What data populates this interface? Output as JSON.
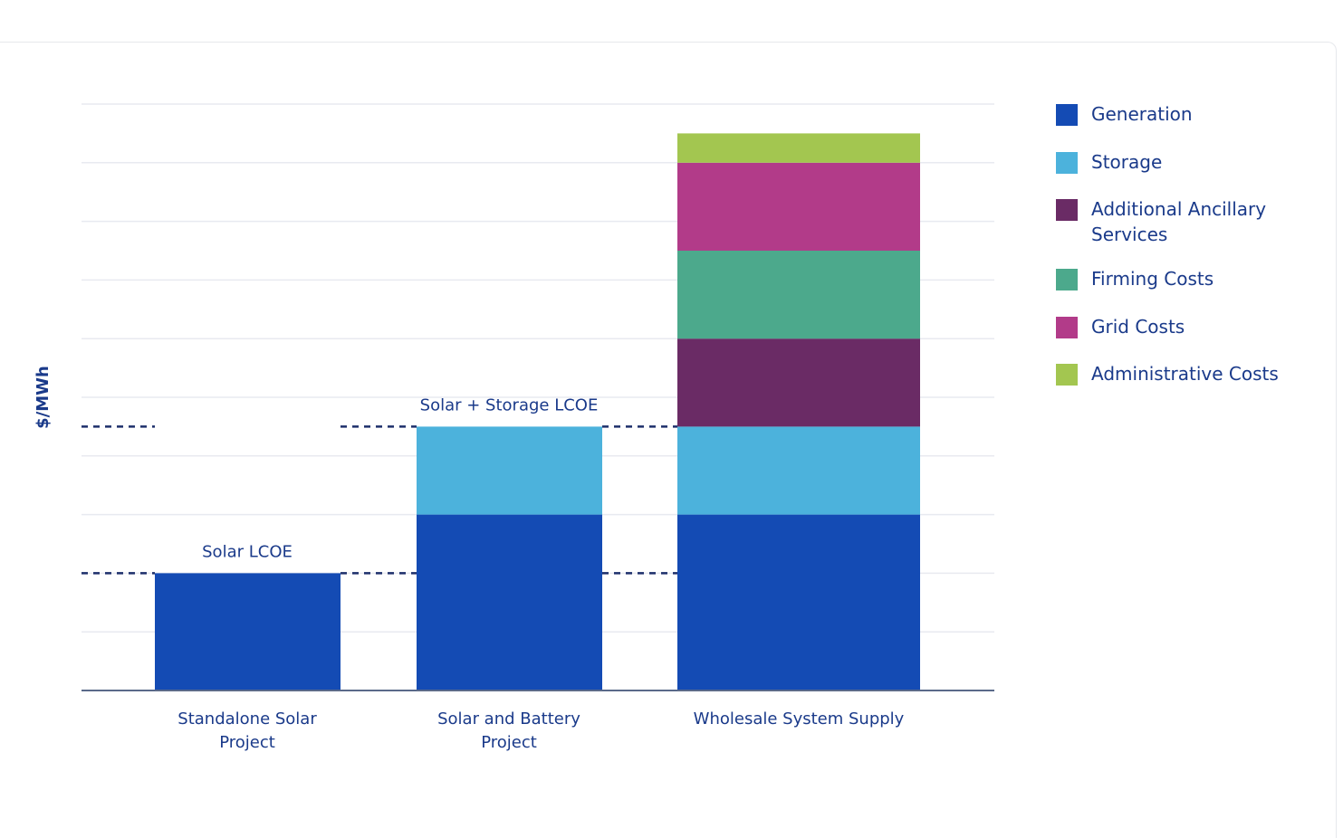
{
  "chart_data": {
    "type": "bar",
    "stacked": true,
    "title": "",
    "xlabel": "",
    "ylabel": "$/MWh",
    "ylim": [
      0,
      10
    ],
    "grid": true,
    "legend_position": "right",
    "categories": [
      "Standalone Solar Project",
      "Solar and Battery Project",
      "Wholesale System Supply"
    ],
    "category_lines": [
      [
        "Standalone Solar",
        "Project"
      ],
      [
        "Solar and Battery",
        "Project"
      ],
      [
        "Wholesale System Supply"
      ]
    ],
    "series": [
      {
        "name": "Generation",
        "color": "#144bb4",
        "values": [
          2.0,
          3.0,
          3.0
        ]
      },
      {
        "name": "Storage",
        "color": "#4cb2dc",
        "values": [
          0,
          1.5,
          1.5
        ]
      },
      {
        "name": "Additional Ancillary Services",
        "color": "#6a2b65",
        "values": [
          0,
          0,
          1.5
        ]
      },
      {
        "name": "Firming Costs",
        "color": "#4ca98c",
        "values": [
          0,
          0,
          1.5
        ]
      },
      {
        "name": "Grid Costs",
        "color": "#b23b89",
        "values": [
          0,
          0,
          1.5
        ]
      },
      {
        "name": "Administrative Costs",
        "color": "#a3c650",
        "values": [
          0,
          0,
          0.5
        ]
      }
    ],
    "annotations": [
      {
        "label": "Solar LCOE",
        "y": 2.0,
        "category": 0
      },
      {
        "label": "Solar + Storage LCOE",
        "y": 4.5,
        "category": 1
      }
    ],
    "colors": {
      "text": "#1a3a8a",
      "grid": "#e8eaf0",
      "axis": "#5a6a8a",
      "dashed": "#1d2f6b"
    }
  },
  "legend": {
    "items": [
      {
        "label": "Generation",
        "color": "#144bb4"
      },
      {
        "label": "Storage",
        "color": "#4cb2dc"
      },
      {
        "label": "Additional Ancillary Services",
        "color": "#6a2b65"
      },
      {
        "label": "Firming Costs",
        "color": "#4ca98c"
      },
      {
        "label": "Grid Costs",
        "color": "#b23b89"
      },
      {
        "label": "Administrative Costs",
        "color": "#a3c650"
      }
    ]
  }
}
